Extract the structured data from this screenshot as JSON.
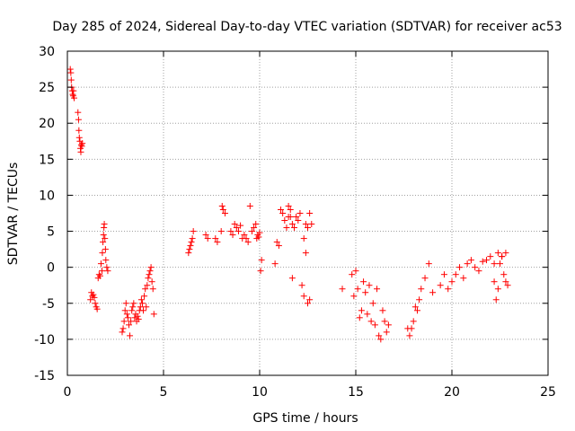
{
  "chart_data": {
    "type": "scatter",
    "title": "Day 285 of 2024, Sidereal Day-to-day VTEC variation (SDTVAR) for receiver ac53",
    "xlabel": "GPS time / hours",
    "ylabel": "SDTVAR / TECUs",
    "xlim": [
      0,
      25
    ],
    "ylim": [
      -15,
      30
    ],
    "xticks": [
      "0",
      "5",
      "10",
      "15",
      "20",
      "25"
    ],
    "yticks": [
      "-15",
      "-10",
      "-5",
      "0",
      "5",
      "10",
      "15",
      "20",
      "25",
      "30"
    ],
    "grid": true,
    "marker": "+",
    "color": "#ff0000",
    "series": [
      {
        "name": "SDTVAR",
        "x": [
          0.15,
          0.18,
          0.2,
          0.22,
          0.25,
          0.28,
          0.3,
          0.32,
          0.35,
          0.55,
          0.58,
          0.6,
          0.62,
          0.65,
          0.68,
          0.7,
          0.72,
          0.75,
          0.78,
          1.2,
          1.25,
          1.3,
          1.35,
          1.4,
          1.45,
          1.5,
          1.55,
          1.6,
          1.65,
          1.7,
          1.75,
          1.8,
          1.82,
          1.85,
          1.88,
          1.9,
          1.92,
          1.95,
          1.98,
          2.0,
          2.05,
          2.1,
          2.85,
          2.9,
          2.95,
          3.0,
          3.05,
          3.1,
          3.15,
          3.2,
          3.25,
          3.3,
          3.35,
          3.4,
          3.45,
          3.5,
          3.55,
          3.6,
          3.65,
          3.7,
          3.75,
          3.8,
          3.85,
          3.9,
          3.95,
          4.0,
          4.05,
          4.1,
          4.15,
          4.2,
          4.25,
          4.3,
          4.35,
          4.4,
          4.45,
          4.5,
          6.3,
          6.35,
          6.4,
          6.45,
          6.5,
          6.55,
          7.2,
          7.3,
          7.7,
          7.8,
          8.0,
          8.05,
          8.1,
          8.2,
          8.5,
          8.6,
          8.7,
          8.8,
          8.9,
          9.0,
          9.1,
          9.2,
          9.3,
          9.4,
          9.5,
          9.6,
          9.7,
          9.8,
          9.85,
          9.9,
          9.95,
          10.0,
          10.05,
          10.1,
          10.8,
          10.9,
          11.0,
          11.1,
          11.2,
          11.3,
          11.4,
          11.5,
          11.6,
          11.7,
          11.8,
          11.9,
          12.0,
          12.1,
          11.5,
          11.6,
          11.7,
          12.2,
          12.3,
          12.4,
          12.5,
          12.6,
          12.7,
          12.3,
          12.4,
          12.5,
          12.6,
          14.3,
          14.8,
          14.9,
          15.0,
          15.1,
          15.2,
          15.3,
          15.4,
          15.5,
          15.6,
          15.7,
          15.8,
          15.9,
          16.0,
          16.1,
          16.2,
          16.3,
          16.4,
          16.5,
          16.6,
          16.7,
          17.7,
          17.8,
          17.9,
          18.0,
          18.1,
          18.2,
          18.3,
          18.4,
          18.6,
          18.8,
          19.0,
          19.4,
          19.6,
          19.8,
          20.0,
          20.2,
          20.4,
          20.6,
          20.8,
          21.0,
          21.2,
          21.4,
          21.6,
          21.8,
          22.0,
          22.2,
          22.4,
          22.6,
          22.8,
          22.2,
          22.3,
          22.4,
          22.5,
          22.6,
          22.7,
          22.8,
          22.9
        ],
        "y": [
          27.5,
          27.0,
          26.0,
          25.0,
          24.5,
          24.0,
          23.8,
          24.5,
          23.5,
          21.5,
          20.5,
          19.0,
          18.0,
          17.5,
          16.5,
          16.0,
          17.0,
          16.8,
          17.2,
          -4.5,
          -3.5,
          -4.0,
          -3.8,
          -4.2,
          -5.0,
          -5.5,
          -5.8,
          -1.5,
          -1.0,
          -1.2,
          0.5,
          -0.5,
          2.0,
          3.5,
          4.5,
          5.5,
          6.0,
          4.0,
          2.5,
          1.0,
          0.0,
          -0.5,
          -9.0,
          -8.5,
          -7.5,
          -6.0,
          -5.0,
          -6.5,
          -7.0,
          -8.0,
          -9.5,
          -7.5,
          -6.0,
          -5.5,
          -5.0,
          -7.0,
          -6.5,
          -7.5,
          -6.8,
          -7.2,
          -6.0,
          -5.5,
          -4.5,
          -5.0,
          -6.0,
          -4.0,
          -3.0,
          -5.5,
          -2.5,
          -1.5,
          -1.0,
          -0.5,
          0.0,
          -2.0,
          -3.0,
          -6.5,
          2.0,
          2.5,
          3.0,
          3.5,
          4.0,
          5.0,
          4.5,
          4.0,
          4.0,
          3.5,
          5.0,
          8.5,
          8.0,
          7.5,
          5.0,
          4.5,
          6.0,
          5.5,
          5.0,
          5.8,
          4.0,
          4.5,
          4.0,
          3.5,
          8.5,
          5.0,
          5.5,
          6.0,
          4.0,
          4.5,
          4.2,
          4.8,
          -0.5,
          1.0,
          0.5,
          3.5,
          3.0,
          8.0,
          7.5,
          6.5,
          5.5,
          7.0,
          8.0,
          6.0,
          5.5,
          7.0,
          6.5,
          7.5,
          8.5,
          7.0,
          -1.5,
          -2.5,
          -4.0,
          6.0,
          5.5,
          7.5,
          6.0,
          4.0,
          2.0,
          -5.0,
          -4.5,
          -3.0,
          -1.0,
          -4.0,
          -0.5,
          -3.0,
          -7.0,
          -6.0,
          -2.0,
          -3.5,
          -6.5,
          -2.5,
          -7.5,
          -5.0,
          -8.0,
          -3.0,
          -9.5,
          -10.0,
          -6.0,
          -7.5,
          -9.0,
          -8.0,
          -8.5,
          -9.5,
          -8.5,
          -7.5,
          -5.5,
          -6.0,
          -4.5,
          -3.0,
          -1.5,
          0.5,
          -3.5,
          -2.5,
          -1.0,
          -3.0,
          -2.0,
          -1.0,
          0.0,
          -1.5,
          0.5,
          1.0,
          0.0,
          -0.5,
          0.8,
          1.0,
          1.5,
          0.5,
          2.0,
          1.5,
          2.0,
          -2.0,
          -4.5,
          -3.0,
          0.5,
          1.5,
          -1.0,
          -2.0,
          -2.5
        ]
      }
    ]
  }
}
